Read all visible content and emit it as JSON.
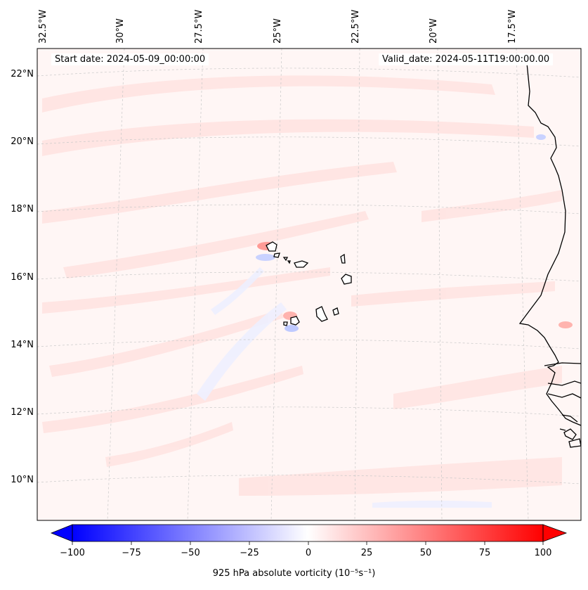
{
  "map": {
    "start_date_text": "Start date: 2024-05-09_00:00:00",
    "valid_date_text": "Valid_date: 2024-05-11T19:00:00.00",
    "longitude_labels": [
      "32.5°W",
      "30°W",
      "27.5°W",
      "25°W",
      "22.5°W",
      "20°W",
      "17.5°W"
    ],
    "latitude_labels": [
      "22°N",
      "20°N",
      "18°N",
      "16°N",
      "14°N",
      "12°N",
      "10°N"
    ],
    "field": "925 hPa absolute vorticity",
    "colorbar": {
      "label": "925 hPa absolute vorticity (10⁻⁵s⁻¹)",
      "tick_labels": [
        "−100",
        "−75",
        "−50",
        "−25",
        "0",
        "25",
        "50",
        "75",
        "100"
      ],
      "min": -100,
      "max": 100,
      "levels_step": 5,
      "colormap": "bwr",
      "extend": "both"
    },
    "colors": {
      "negative": "#0000ff",
      "neutral": "#ffffff",
      "positive": "#ff0000",
      "coastline": "#000000",
      "gridline": "#c8c8c8"
    }
  }
}
